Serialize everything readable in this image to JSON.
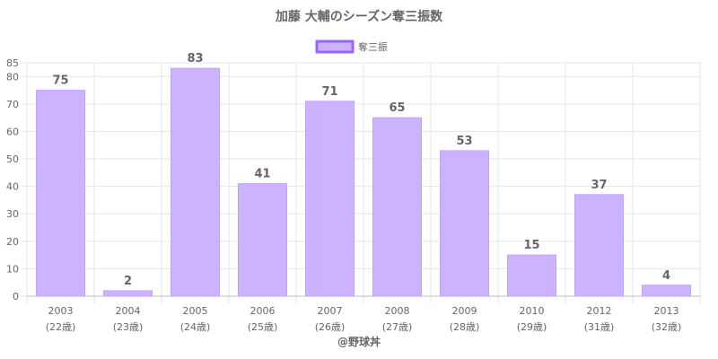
{
  "chart_data": {
    "type": "bar",
    "title": "加藤 大輔のシーズン奪三振数",
    "legend": {
      "label": "奪三振",
      "position": "top"
    },
    "categories": [
      "2003",
      "2004",
      "2005",
      "2006",
      "2007",
      "2008",
      "2009",
      "2010",
      "2012",
      "2013"
    ],
    "category_sublabels": [
      "(22歳)",
      "(23歳)",
      "(24歳)",
      "(25歳)",
      "(26歳)",
      "(27歳)",
      "(28歳)",
      "(29歳)",
      "(31歳)",
      "(32歳)"
    ],
    "series": [
      {
        "name": "奪三振",
        "values": [
          75,
          2,
          83,
          41,
          71,
          65,
          53,
          15,
          37,
          4
        ]
      }
    ],
    "y_ticks": [
      0,
      10,
      20,
      30,
      40,
      50,
      60,
      70,
      80,
      85
    ],
    "ylim": [
      0,
      85
    ],
    "grid": true,
    "colors": {
      "bar_fill": "#ccb3ff",
      "bar_stroke": "#c1a3ff",
      "legend_fill": "#ccb3ff",
      "legend_stroke": "#9966ff",
      "text": "#666666",
      "grid": "#e6e6e6"
    }
  },
  "credit": "@野球丼"
}
